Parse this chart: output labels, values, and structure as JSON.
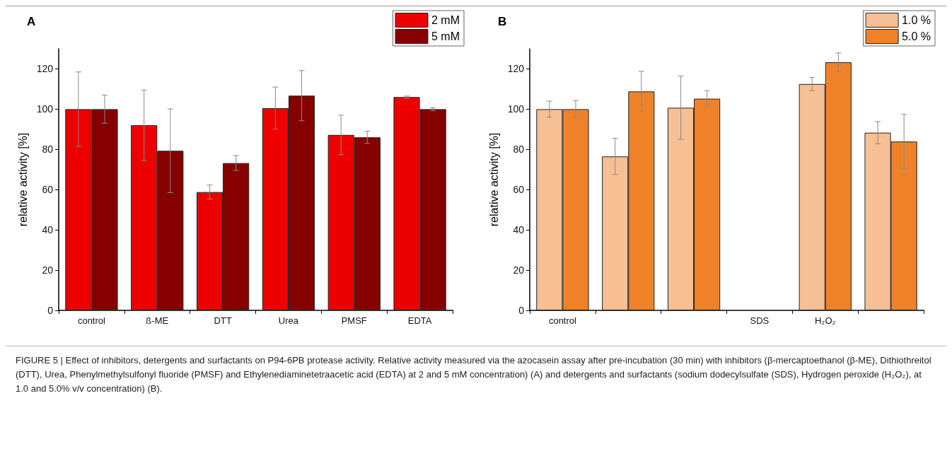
{
  "chart_data": [
    {
      "type": "bar",
      "title": "A",
      "ylabel": "relative activity [%]",
      "categories": [
        "control",
        "ß-ME",
        "DTT",
        "Urea",
        "PMSF",
        "EDTA"
      ],
      "ylim": [
        0,
        130
      ],
      "yticks": [
        0,
        20,
        40,
        60,
        80,
        100,
        120
      ],
      "legend": "top right",
      "series": [
        {
          "name": "2 mM",
          "color": "#ee0000",
          "values": [
            100,
            92,
            58.8,
            100.5,
            87.2,
            106
          ],
          "errors": [
            18.5,
            17.5,
            3.5,
            10.5,
            9.8,
            0.5
          ]
        },
        {
          "name": "5 mM",
          "color": "#870000",
          "values": [
            100,
            79.3,
            73.2,
            106.7,
            86,
            100
          ],
          "errors": [
            7,
            20.8,
            3.7,
            12.5,
            3,
            0.8
          ]
        }
      ],
      "annotations": [
        "FIGURE 5 | Effect of inhibitors, detergents and surfactants on P94-6PB protease activity. Relative activity measured via the azocasein assay after pre-incubation (30 min) with inhibitors (β-mercaptoethanol (β-ME), Dithiothreitol (DTT), Urea, Phenylmethylsulfonyl fluoride (PMSF) and Ethylenediaminetetraacetic acid (EDTA) at 2 and 5 mM concentration) (A) and detergents and surfactants (sodium dodecylsulfate (SDS), Hydrogen peroxide (H₂O₂), at 1.0 and 5.0% v/v concentration) (B)."
      ]
    },
    {
      "type": "bar",
      "title": "B",
      "ylabel": "relative activity [%]",
      "categories": [
        "control",
        null,
        null,
        "SDS",
        "H₂O₂",
        null
      ],
      "ylim": [
        0,
        130
      ],
      "yticks": [
        0,
        20,
        40,
        60,
        80,
        100,
        120
      ],
      "legend": "top right",
      "series": [
        {
          "name": "1.0 %",
          "color": "#f7bf94",
          "values": [
            100,
            76.5,
            100.7,
            null,
            112.5,
            88.3
          ],
          "errors": [
            4,
            9,
            15.7,
            null,
            3.3,
            5.5
          ]
        },
        {
          "name": "5.0 %",
          "color": "#ef8229",
          "values": [
            100,
            108.8,
            105.2,
            null,
            123.3,
            83.9
          ],
          "errors": [
            4.3,
            10,
            4,
            null,
            4.6,
            13.5
          ]
        }
      ]
    }
  ]
}
